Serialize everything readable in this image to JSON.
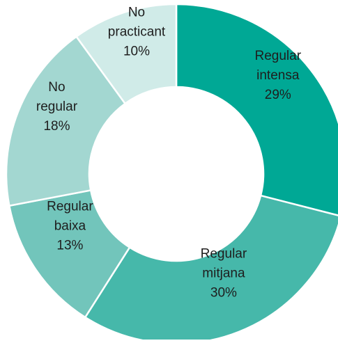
{
  "chart_data": {
    "type": "donut",
    "categories": [
      "Regular intensa",
      "Regular mitjana",
      "Regular baixa",
      "No regular",
      "No practicant"
    ],
    "values": [
      29,
      30,
      13,
      18,
      10
    ],
    "value_labels": [
      "29%",
      "30%",
      "13%",
      "18%",
      "10%"
    ],
    "colors": [
      "#00a895",
      "#46b8aa",
      "#72c5bb",
      "#a3d7d1",
      "#d0ebe8"
    ]
  }
}
